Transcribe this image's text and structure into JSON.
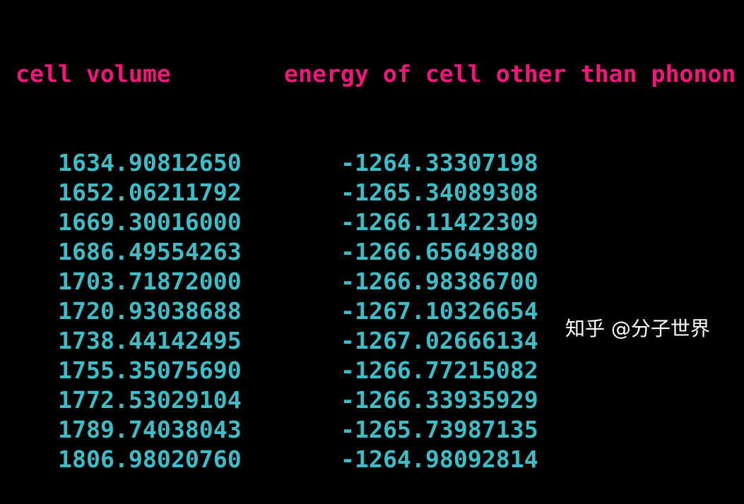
{
  "colors": {
    "header": "#f0167c",
    "values": "#3fbcc6",
    "background": "#000000"
  },
  "headers": [
    "cell volume",
    "energy of cell other than phonon"
  ],
  "rows": [
    [
      "1634.90812650",
      "-1264.33307198"
    ],
    [
      "1652.06211792",
      "-1265.34089308"
    ],
    [
      "1669.30016000",
      "-1266.11422309"
    ],
    [
      "1686.49554263",
      "-1266.65649880"
    ],
    [
      "1703.71872000",
      "-1266.98386700"
    ],
    [
      "1720.93038688",
      "-1267.10326654"
    ],
    [
      "1738.44142495",
      "-1267.02666134"
    ],
    [
      "1755.35075690",
      "-1266.77215082"
    ],
    [
      "1772.53029104",
      "-1266.33935929"
    ],
    [
      "1789.74038043",
      "-1265.73987135"
    ],
    [
      "1806.98020760",
      "-1264.98092814"
    ]
  ],
  "watermark": "知乎 @分子世界"
}
